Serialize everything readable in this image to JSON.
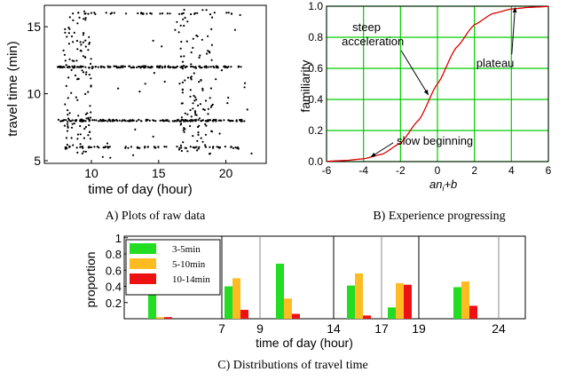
{
  "chart_data": [
    {
      "type": "scatter",
      "caption": "A) Plots of raw data",
      "xlabel": "time of day (hour)",
      "ylabel": "travel time (min)",
      "xlim": [
        6.5,
        23
      ],
      "ylim": [
        4.8,
        16.6
      ],
      "xticks": [
        10,
        15,
        20
      ],
      "yticks": [
        5,
        10,
        15
      ],
      "bands": [
        {
          "y": 16.0,
          "x": [
            8.0,
            21.0
          ],
          "density": "sparse"
        },
        {
          "y": 12.0,
          "x": [
            7.5,
            21.5
          ],
          "density": "dense"
        },
        {
          "y": 8.0,
          "x": [
            7.5,
            21.5
          ],
          "density": "dense"
        },
        {
          "y": 6.0,
          "x": [
            8.0,
            21.0
          ],
          "density": "medium"
        }
      ],
      "clusters": [
        {
          "x": [
            8.0,
            10.0
          ],
          "y": [
            5.5,
            16.4
          ]
        },
        {
          "x": [
            16.5,
            19.0
          ],
          "y": [
            5.5,
            16.4
          ]
        }
      ]
    },
    {
      "type": "line",
      "caption": "B) Experience progressing",
      "xlabel_main": "an",
      "xlabel_sub": "i",
      "xlabel_tail": "+b",
      "ylabel": "familiarity",
      "xlim": [
        -6,
        6
      ],
      "ylim": [
        0,
        1
      ],
      "xticks": [
        -6,
        -4,
        -2,
        0,
        2,
        4,
        6
      ],
      "yticks": [
        0.0,
        0.2,
        0.4,
        0.6,
        0.8,
        1.0
      ],
      "xtick_labels": [
        "-6",
        "-4",
        "-2",
        "0",
        "2",
        "4",
        "6"
      ],
      "ytick_labels": [
        "0.0",
        "0.2",
        "0.4",
        "0.6",
        "0.8",
        "1.0"
      ],
      "grid": true,
      "curve_color": "#dd0000",
      "grid_color": "#00cc00",
      "series": [
        {
          "x": [
            -6,
            -5,
            -4,
            -3,
            -2,
            -1,
            0,
            1,
            2,
            3,
            4,
            5,
            6
          ],
          "y": [
            0.002,
            0.007,
            0.018,
            0.047,
            0.119,
            0.269,
            0.5,
            0.731,
            0.881,
            0.953,
            0.982,
            0.993,
            0.998
          ]
        }
      ],
      "annotations": [
        {
          "text1": "steep",
          "text2": "acceleration",
          "x": -4.6,
          "y": 0.84,
          "arrow_to": [
            -0.5,
            0.43
          ]
        },
        {
          "text1": "plateau",
          "x": 2.1,
          "y": 0.61,
          "arrow_to": [
            4.2,
            0.99
          ]
        },
        {
          "text1": "slow beginning",
          "x": -2.2,
          "y": 0.11,
          "arrow_to": [
            -3.6,
            0.03
          ]
        }
      ]
    },
    {
      "type": "bar",
      "caption": "C) Distributions of travel time",
      "xlabel": "time of day (hour)",
      "ylabel": "proportion",
      "ylim": [
        0,
        1.02
      ],
      "yticks": [
        0.2,
        0.4,
        0.6,
        0.8,
        1
      ],
      "ytick_labels": [
        "0.2",
        "0.4",
        "0.6",
        "0.8",
        "1"
      ],
      "xtick_labels": [
        "7",
        "9",
        "14",
        "17",
        "19",
        "24"
      ],
      "legend": "top-left",
      "series": [
        {
          "name": "3-5min",
          "color": "#22dd22"
        },
        {
          "name": "5-10min",
          "color": "#ffbb22"
        },
        {
          "name": "10-14min",
          "color": "#ee1111"
        }
      ],
      "groups": [
        {
          "start": 7,
          "end": 9,
          "values": [
            0.98,
            0.02,
            0.02
          ]
        },
        {
          "start": 9,
          "end": 14,
          "values": [
            0.4,
            0.5,
            0.11
          ]
        },
        {
          "start": 14,
          "end": 17,
          "values": [
            0.68,
            0.25,
            0.06
          ]
        },
        {
          "start": 17,
          "end": 19,
          "values": [
            0.41,
            0.56,
            0.04
          ]
        },
        {
          "start": 19,
          "end": 24,
          "values": [
            0.14,
            0.44,
            0.42
          ]
        },
        {
          "start": 24,
          "end": 28,
          "values": [
            0.39,
            0.46,
            0.16
          ]
        }
      ]
    }
  ]
}
